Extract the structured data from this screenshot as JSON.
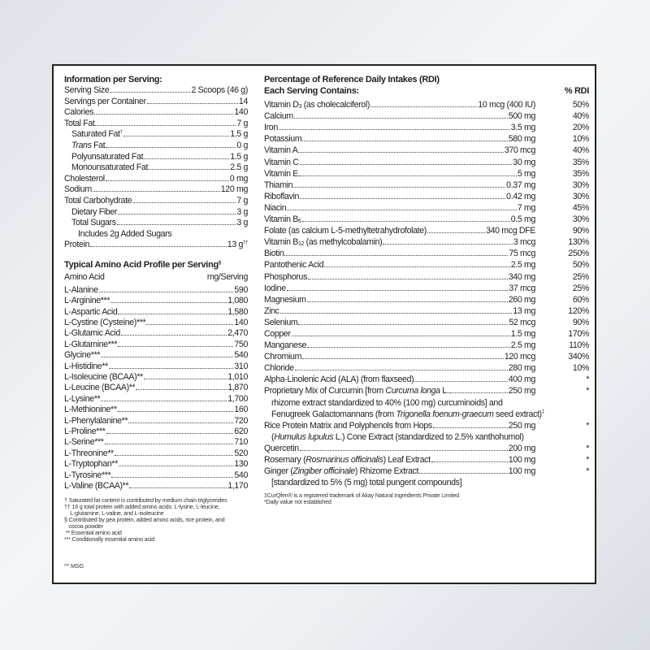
{
  "info": {
    "title": "Information per Serving:",
    "rows": [
      {
        "label": "Serving Size",
        "value": "2 Scoops (46 g)",
        "indent": 0
      },
      {
        "label": "Servings per Container",
        "value": "14",
        "indent": 0
      },
      {
        "label": "Calories",
        "value": "140",
        "indent": 0
      },
      {
        "label": "Total Fat",
        "value": "7 g",
        "indent": 0
      },
      {
        "label": [
          [
            "Saturated Fat",
            ""
          ],
          [
            "†",
            "sup"
          ]
        ],
        "value": "1.5 g",
        "indent": 1
      },
      {
        "label": [
          [
            "Trans",
            "i"
          ],
          [
            " Fat",
            ""
          ]
        ],
        "value": "0 g",
        "indent": 1
      },
      {
        "label": "Polyunsaturated Fat",
        "value": "1.5 g",
        "indent": 1
      },
      {
        "label": "Monounsaturated Fat",
        "value": "2.5 g",
        "indent": 1
      },
      {
        "label": "Cholesterol",
        "value": "0 mg",
        "indent": 0
      },
      {
        "label": "Sodium",
        "value": "120 mg",
        "indent": 0
      },
      {
        "label": "Total Carbohydrate",
        "value": "7 g",
        "indent": 0
      },
      {
        "label": "Dietary Fiber",
        "value": "3 g",
        "indent": 1
      },
      {
        "label": "Total Sugars",
        "value": "3 g",
        "indent": 1
      },
      {
        "label": "Includes 2g Added Sugars",
        "value": null,
        "indent": 2
      },
      {
        "label": "Protein",
        "value": "13 g",
        "value_sup": "††",
        "indent": 0
      }
    ]
  },
  "amino": {
    "title": "Typical Amino Acid Profile per Serving",
    "title_sup": "§",
    "col_name": "Amino Acid",
    "col_unit": "mg/Serving",
    "rows": [
      {
        "label": "L-Alanine",
        "value": "590"
      },
      {
        "label": "L-Arginine***",
        "value": "1,080"
      },
      {
        "label": "L-Aspartic Acid",
        "value": "1,580"
      },
      {
        "label": "L-Cystine (Cysteine)***",
        "value": "140"
      },
      {
        "label": "L-Glutamic Acid",
        "value": "2,470"
      },
      {
        "label": "L-Glutamine***",
        "value": "750"
      },
      {
        "label": "Glycine***",
        "value": "540"
      },
      {
        "label": "L-Histidine**",
        "value": "310"
      },
      {
        "label": "L-Isoleucine (BCAA)**",
        "value": "1,010"
      },
      {
        "label": "L-Leucine (BCAA)**",
        "value": "1,870"
      },
      {
        "label": "L-Lysine**",
        "value": "1,700"
      },
      {
        "label": "L-Methionine**",
        "value": "160"
      },
      {
        "label": "L-Phenylalanine**",
        "value": "720"
      },
      {
        "label": "L-Proline***",
        "value": "620"
      },
      {
        "label": "L-Serine***",
        "value": "710"
      },
      {
        "label": "L-Threonine**",
        "value": "520"
      },
      {
        "label": "L-Tryptophan**",
        "value": "130"
      },
      {
        "label": "L-Tyrosine***",
        "value": "540"
      },
      {
        "label": "L-Valine (BCAA)**",
        "value": "1,170"
      }
    ],
    "footnotes": [
      "† Saturated fat content is contributed by medium chain triglycerides",
      "†† 16 g total protein with added amino acids: L-lysine, L-leucine,",
      "    L-glutamine, L-valine, and L-isoleucine",
      "§ Contributed by pea protein, added amino acids, rice protein, and",
      "   cocoa powder",
      " ** Essential amino acid",
      "*** Conditionally essential amino acid"
    ],
    "msg": "^^ MSG"
  },
  "rdi": {
    "title": "Percentage of Reference Daily Intakes (RDI)",
    "subtitle": "Each Serving Contains:",
    "col_rdi": "% RDI",
    "rows": [
      {
        "label": [
          [
            "Vitamin D",
            ""
          ],
          [
            "3",
            "sub"
          ],
          [
            " (as cholecalciferol)",
            ""
          ]
        ],
        "value": "10 mcg (400 IU)",
        "rdi": "50%"
      },
      {
        "label": "Calcium",
        "value": "500 mg",
        "rdi": "40%"
      },
      {
        "label": "Iron",
        "value": "3.5 mg",
        "rdi": "20%"
      },
      {
        "label": "Potassium",
        "value": "580 mg",
        "rdi": "10%"
      },
      {
        "label": "Vitamin A",
        "value": "370 mcg",
        "rdi": "40%"
      },
      {
        "label": "Vitamin C",
        "value": "30 mg",
        "rdi": "35%"
      },
      {
        "label": "Vitamin E",
        "value": "5 mg",
        "rdi": "35%"
      },
      {
        "label": "Thiamin",
        "value": "0.37 mg",
        "rdi": "30%"
      },
      {
        "label": "Riboflavin",
        "value": "0.42 mg",
        "rdi": "30%"
      },
      {
        "label": "Niacin",
        "value": "7 mg",
        "rdi": "45%"
      },
      {
        "label": [
          [
            "Vitamin B",
            ""
          ],
          [
            "6",
            "sub"
          ]
        ],
        "value": "0.5 mg",
        "rdi": "30%"
      },
      {
        "label": "Folate (as calcium L-5-methyltetrahydrofolate)",
        "value": "340 mcg DFE",
        "rdi": "90%"
      },
      {
        "label": [
          [
            "Vitamin B",
            ""
          ],
          [
            "12",
            "sub"
          ],
          [
            " (as methylcobalamin)",
            ""
          ]
        ],
        "value": "3 mcg",
        "rdi": "130%"
      },
      {
        "label": "Biotin",
        "value": "75 mcg",
        "rdi": "250%"
      },
      {
        "label": "Pantothenic Acid",
        "value": "2.5 mg",
        "rdi": "50%"
      },
      {
        "label": "Phosphorus",
        "value": "340 mg",
        "rdi": "25%"
      },
      {
        "label": "Iodine",
        "value": "37 mcg",
        "rdi": "25%"
      },
      {
        "label": "Magnesium",
        "value": "260 mg",
        "rdi": "60%"
      },
      {
        "label": "Zinc",
        "value": "13 mg",
        "rdi": "120%"
      },
      {
        "label": "Selenium",
        "value": "52 mcg",
        "rdi": "90%"
      },
      {
        "label": "Copper",
        "value": "1.5 mg",
        "rdi": "170%"
      },
      {
        "label": "Manganese",
        "value": "2.5 mg",
        "rdi": "110%"
      },
      {
        "label": "Chromium",
        "value": "120 mcg",
        "rdi": "340%"
      },
      {
        "label": "Chloride",
        "value": "280 mg",
        "rdi": "10%"
      },
      {
        "label": "Alpha-Linolenic Acid (ALA) (from flaxseed)",
        "value": "400 mg",
        "rdi": "*"
      },
      {
        "label": [
          [
            "Proprietary Mix of Curcumin [from ",
            ""
          ],
          [
            "Curcuma longa",
            "i"
          ],
          [
            " L.",
            ""
          ]
        ],
        "value": "250 mg",
        "rdi": "*"
      },
      {
        "label": "rhizome extract standardized to 40% (100 mg) curcuminoids] and",
        "indent": 1
      },
      {
        "label": [
          [
            "Fenugreek Galactomannans (from ",
            ""
          ],
          [
            "Trigonella foenum-graecum",
            "i"
          ],
          [
            " seed extract)",
            ""
          ],
          [
            "‡",
            "sup"
          ]
        ],
        "indent": 1
      },
      {
        "label": "Rice Protein Matrix and Polyphenols from Hops",
        "value": "250 mg",
        "rdi": "*"
      },
      {
        "label": [
          [
            "(",
            ""
          ],
          [
            "Humulus lupulus",
            "i"
          ],
          [
            " L.) Cone Extract (standardized to 2.5% xanthohumol)",
            ""
          ]
        ],
        "indent": 1
      },
      {
        "label": "Quercetin",
        "value": "200 mg",
        "rdi": "*"
      },
      {
        "label": [
          [
            "Rosemary (",
            ""
          ],
          [
            "Rosmarinus officinalis",
            "i"
          ],
          [
            ") Leaf Extract",
            ""
          ]
        ],
        "value": "100 mg",
        "rdi": "*"
      },
      {
        "label": [
          [
            "Ginger (",
            ""
          ],
          [
            "Zingiber officinale",
            "i"
          ],
          [
            ") Rhizome Extract",
            ""
          ]
        ],
        "value": "100 mg",
        "rdi": "*"
      },
      {
        "label": "[standardized to 5% (5 mg) total pungent compounds]",
        "indent": 1
      }
    ],
    "footnotes": [
      "‡CurQfen® is a registered trademark of Akay Natural Ingredients Private Limited",
      "*Daily value not established"
    ]
  }
}
